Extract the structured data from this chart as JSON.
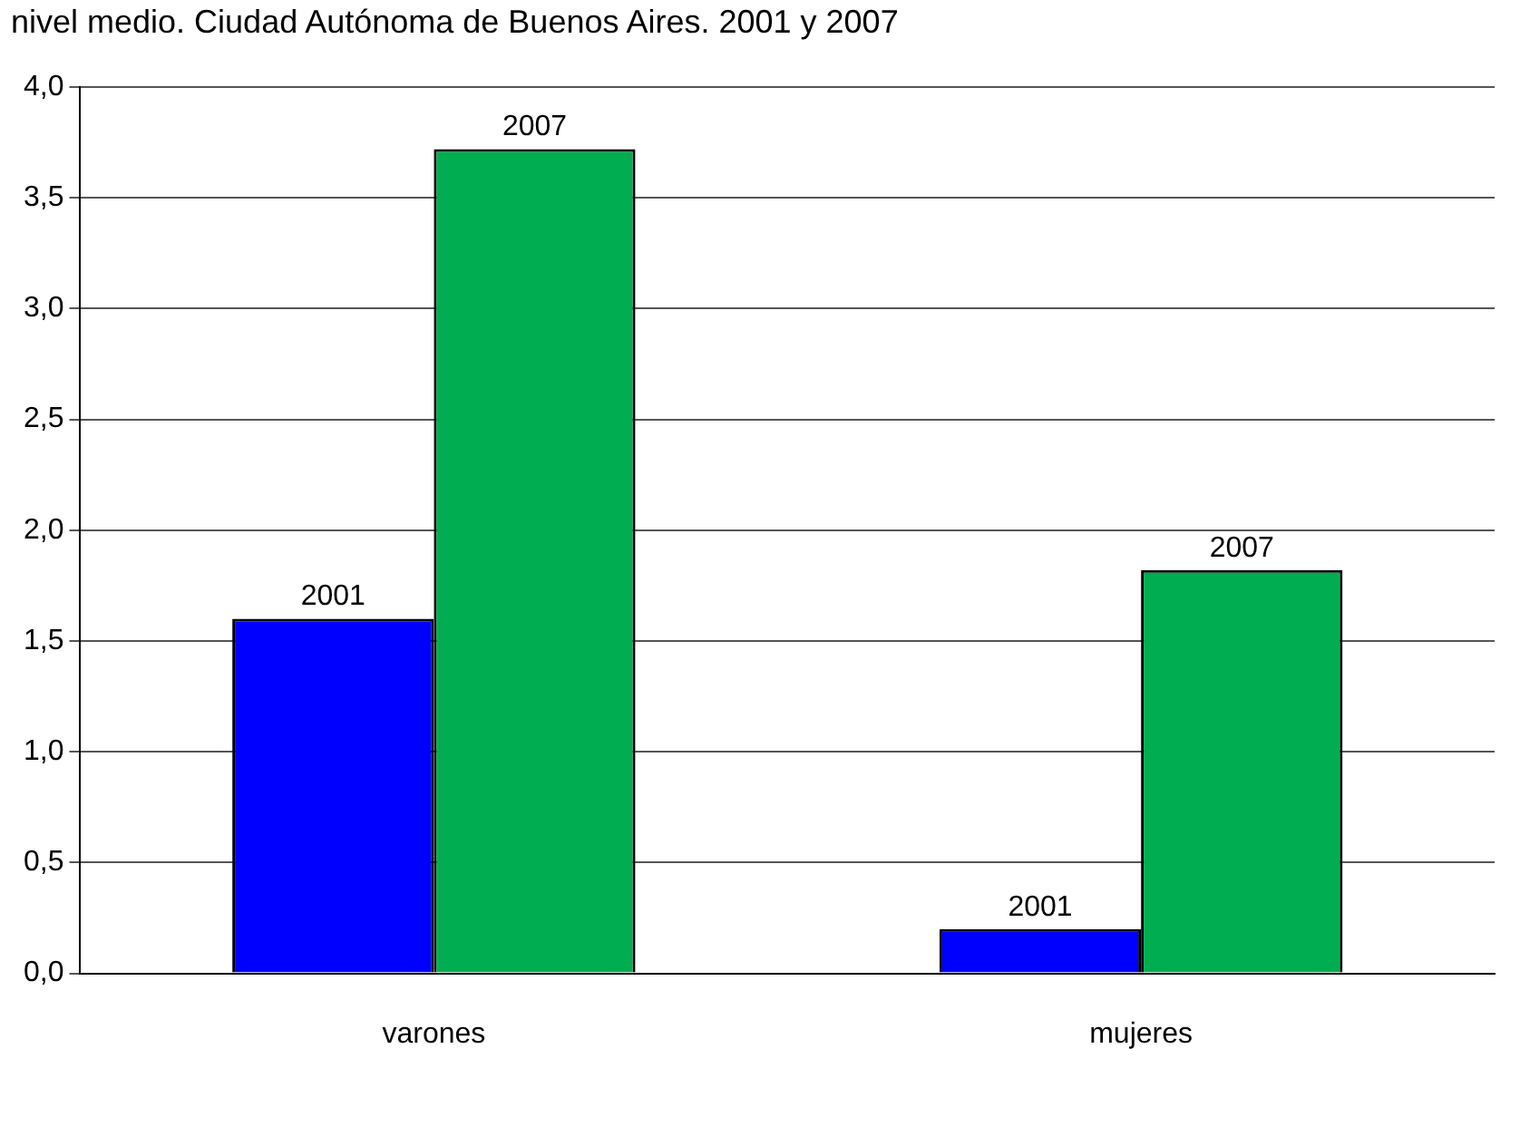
{
  "chart_data": {
    "type": "bar",
    "title": "nivel medio. Ciudad Autónoma de Buenos Aires. 2001 y 2007",
    "categories": [
      "varones",
      "mujeres"
    ],
    "series": [
      {
        "name": "2001",
        "color": "#0000ff",
        "values": [
          1.6,
          0.2
        ]
      },
      {
        "name": "2007",
        "color": "#00ad50",
        "values": [
          3.72,
          1.82
        ]
      }
    ],
    "ylim": [
      0,
      4
    ],
    "yticks": [
      {
        "value": 0,
        "label": "0,0"
      },
      {
        "value": 0.5,
        "label": "0,5"
      },
      {
        "value": 1,
        "label": "1,0"
      },
      {
        "value": 1.5,
        "label": "1,5"
      },
      {
        "value": 2,
        "label": "2,0"
      },
      {
        "value": 2.5,
        "label": "2,5"
      },
      {
        "value": 3,
        "label": "3,0"
      },
      {
        "value": 3.5,
        "label": "3,5"
      },
      {
        "value": 4,
        "label": "4,0"
      }
    ],
    "grid": "y",
    "legend": false
  }
}
